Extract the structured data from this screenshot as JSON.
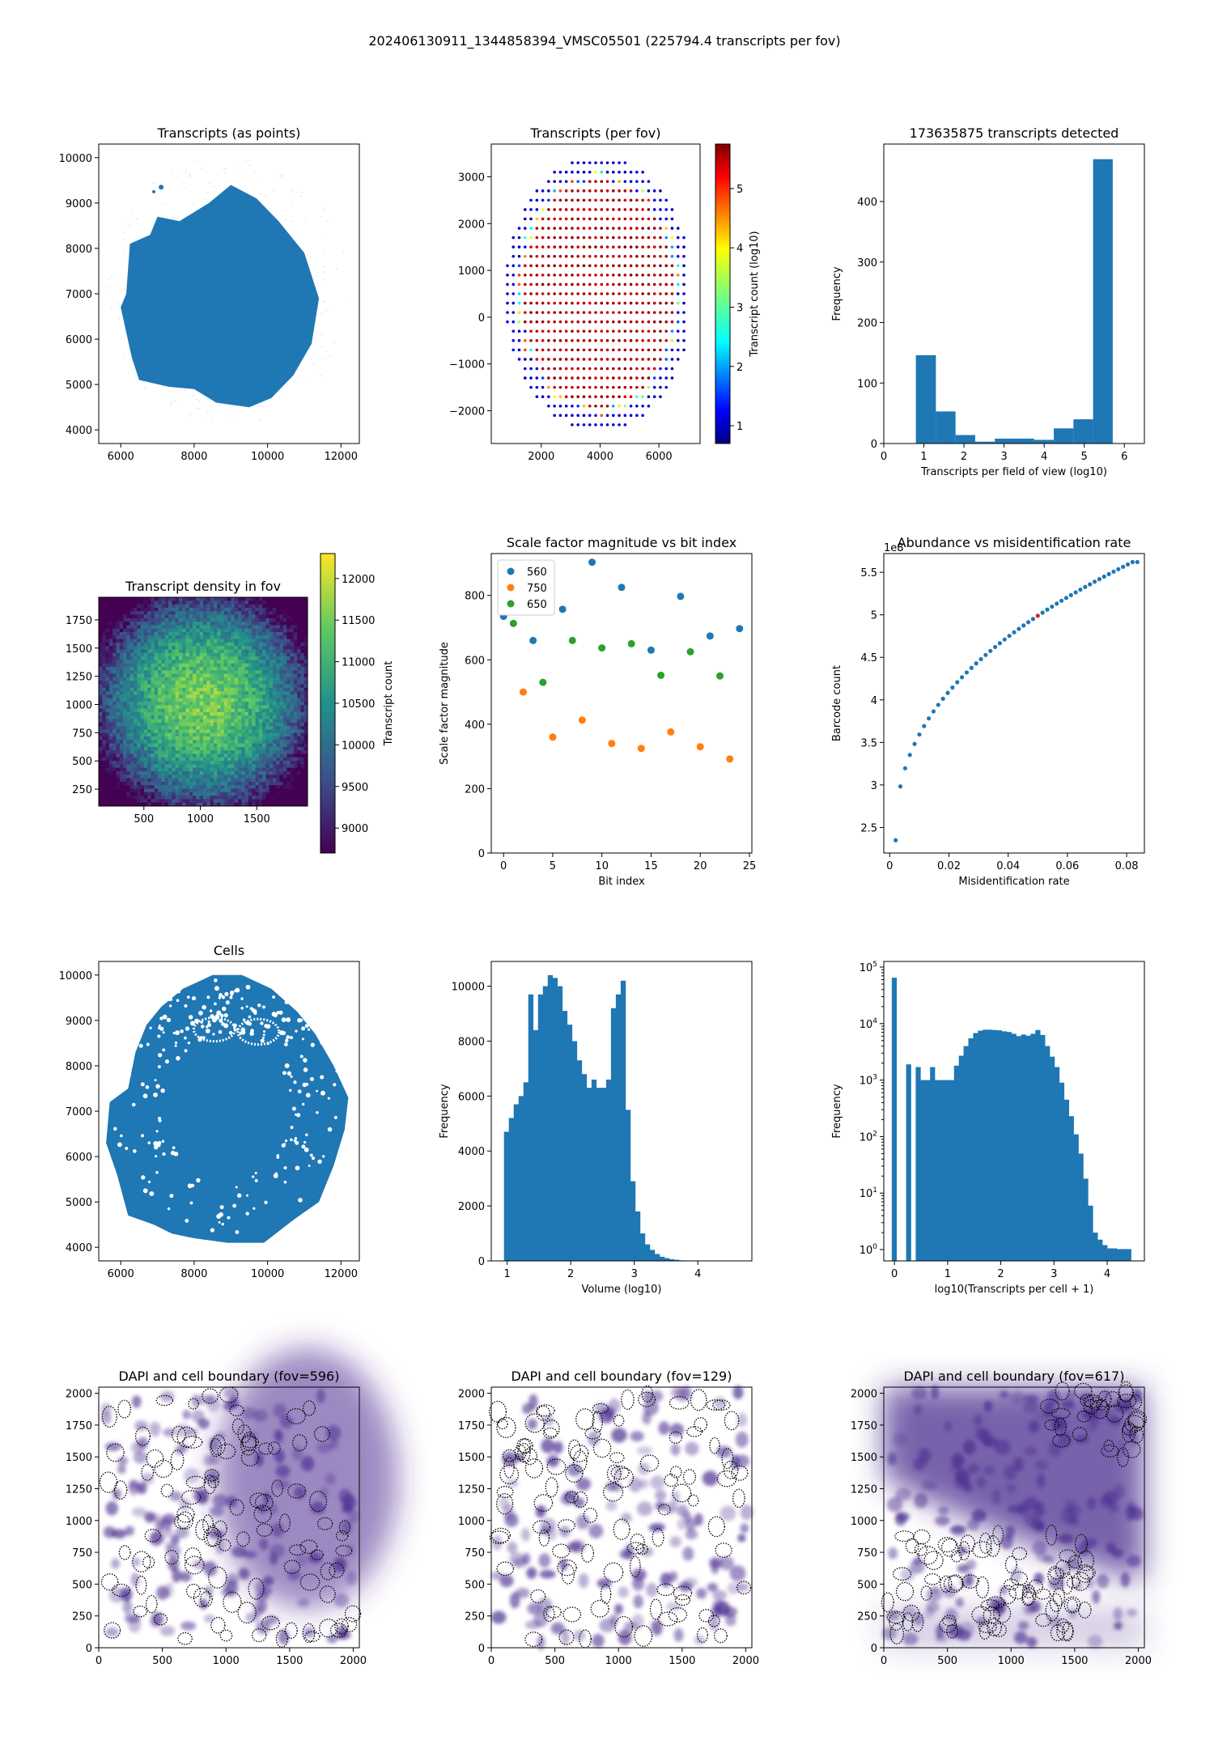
{
  "suptitle": "202406130911_1344858394_VMSC05501 (225794.4 transcripts per fov)",
  "colors": {
    "blue": "#1f77b4",
    "orange": "#ff7f0e",
    "green": "#2ca02c",
    "red": "#d62728",
    "dapi": "#4b2c8f"
  },
  "chart_data": [
    {
      "id": "transcripts-points",
      "type": "scatter",
      "title": "Transcripts (as points)",
      "xlabel": "",
      "ylabel": "",
      "xlim": [
        5400,
        12500
      ],
      "ylim": [
        3700,
        10300
      ],
      "xticks": [
        6000,
        8000,
        10000,
        12000
      ],
      "yticks": [
        4000,
        5000,
        6000,
        7000,
        8000,
        9000,
        10000
      ],
      "shape": "tissue"
    },
    {
      "id": "transcripts-per-fov",
      "type": "scatter",
      "title": "Transcripts (per fov)",
      "xlabel": "",
      "ylabel": "",
      "xlim": [
        300,
        7400
      ],
      "ylim": [
        -2700,
        3700
      ],
      "xticks": [
        2000,
        4000,
        6000
      ],
      "yticks": [
        -2000,
        -1000,
        0,
        1000,
        2000,
        3000
      ],
      "colorbar": {
        "label": "Transcript count (log10)",
        "range": [
          0.7,
          5.75
        ],
        "ticks": [
          1,
          2,
          3,
          4,
          5
        ],
        "cmap": "jet"
      }
    },
    {
      "id": "transcripts-histogram",
      "type": "bar",
      "title": "173635875 transcripts detected",
      "xlabel": "Transcripts per field of view (log10)",
      "ylabel": "Frequency",
      "xlim": [
        0,
        6.5
      ],
      "ylim": [
        0,
        495
      ],
      "xticks": [
        0,
        1,
        2,
        3,
        4,
        5,
        6
      ],
      "yticks": [
        0,
        100,
        200,
        300,
        400
      ],
      "bin_edges": [
        0.8,
        1.3,
        1.79,
        2.28,
        2.77,
        3.26,
        3.75,
        4.24,
        4.73,
        5.22,
        5.71
      ],
      "values": [
        146,
        53,
        14,
        3,
        8,
        8,
        6,
        25,
        40,
        470
      ]
    },
    {
      "id": "density-fov",
      "type": "heatmap",
      "title": "Transcript density in fov",
      "xlabel": "",
      "ylabel": "",
      "xlim": [
        100,
        1950
      ],
      "ylim": [
        100,
        1950
      ],
      "xticks": [
        500,
        1000,
        1500
      ],
      "yticks": [
        250,
        500,
        750,
        1000,
        1250,
        1500,
        1750
      ],
      "colorbar": {
        "label": "Transcript count",
        "range": [
          8700,
          12300
        ],
        "ticks": [
          9000,
          9500,
          10000,
          10500,
          11000,
          11500,
          12000
        ],
        "cmap": "viridis"
      }
    },
    {
      "id": "scale-factor",
      "type": "scatter",
      "title": "Scale factor magnitude vs bit index",
      "xlabel": "Bit index",
      "ylabel": "Scale factor magnitude",
      "xlim": [
        -1.25,
        25.25
      ],
      "ylim": [
        0,
        930
      ],
      "xticks": [
        0,
        5,
        10,
        15,
        20,
        25
      ],
      "yticks": [
        0,
        200,
        400,
        600,
        800
      ],
      "legend_position": "upper-left",
      "series": [
        {
          "name": "560",
          "color": "#1f77b4",
          "x": [
            0,
            3,
            6,
            9,
            12,
            15,
            18,
            21,
            24
          ],
          "y": [
            735,
            660,
            757,
            903,
            825,
            630,
            797,
            674,
            697
          ]
        },
        {
          "name": "750",
          "color": "#ff7f0e",
          "x": [
            2,
            5,
            8,
            11,
            14,
            17,
            20,
            23
          ],
          "y": [
            500,
            360,
            413,
            340,
            325,
            376,
            330,
            292
          ]
        },
        {
          "name": "650",
          "color": "#2ca02c",
          "x": [
            1,
            4,
            7,
            10,
            13,
            16,
            19,
            22
          ],
          "y": [
            713,
            530,
            660,
            637,
            650,
            552,
            625,
            550
          ]
        }
      ]
    },
    {
      "id": "abundance-misid",
      "type": "scatter",
      "title": "Abundance vs misidentification rate",
      "xlabel": "Misidentification rate",
      "ylabel": "Barcode count",
      "offset_label": "1e8",
      "xlim": [
        -0.002,
        0.086
      ],
      "ylim": [
        2.2,
        5.72
      ],
      "xticks": [
        0.0,
        0.02,
        0.04,
        0.06,
        0.08
      ],
      "yticks": [
        2.5,
        3.0,
        3.5,
        4.0,
        4.5,
        5.0,
        5.5
      ],
      "highlight_x": 0.05
    },
    {
      "id": "cells",
      "type": "scatter",
      "title": "Cells",
      "xlabel": "",
      "ylabel": "",
      "xlim": [
        5400,
        12500
      ],
      "ylim": [
        3700,
        10300
      ],
      "xticks": [
        6000,
        8000,
        10000,
        12000
      ],
      "yticks": [
        4000,
        5000,
        6000,
        7000,
        8000,
        9000,
        10000
      ],
      "shape": "cells"
    },
    {
      "id": "volume-histogram",
      "type": "bar",
      "title": "",
      "xlabel": "Volume (log10)",
      "ylabel": "Frequency",
      "xlim": [
        0.75,
        4.85
      ],
      "ylim": [
        0,
        10900
      ],
      "xticks": [
        1,
        2,
        3,
        4
      ],
      "yticks": [
        0,
        2000,
        4000,
        6000,
        8000,
        10000
      ],
      "bin_start": 0.95,
      "bin_width": 0.0765,
      "values": [
        4700,
        5200,
        5700,
        6000,
        6500,
        9700,
        8400,
        9700,
        10000,
        10400,
        10300,
        10000,
        9100,
        8600,
        8000,
        7300,
        6800,
        6300,
        6600,
        6300,
        6300,
        6600,
        9200,
        9700,
        10200,
        5500,
        2900,
        1800,
        1000,
        600,
        400,
        250,
        150,
        100,
        60,
        40,
        20,
        10,
        5,
        3
      ]
    },
    {
      "id": "transcripts-per-cell",
      "type": "bar",
      "title": "",
      "xlabel": "log10(Transcripts per cell + 1)",
      "ylabel": "Frequency",
      "yscale": "log",
      "xlim": [
        -0.2,
        4.7
      ],
      "ylim_log10": [
        -0.2,
        5.1
      ],
      "xticks": [
        0,
        1,
        2,
        3,
        4
      ],
      "ytick_exponents": [
        0,
        1,
        2,
        3,
        4,
        5
      ],
      "bin_start": -0.05,
      "bin_width": 0.09,
      "values": [
        65000,
        0,
        0,
        1900,
        0,
        1700,
        1000,
        1000,
        1700,
        1000,
        1000,
        1000,
        1000,
        1800,
        2700,
        4000,
        5500,
        6800,
        7500,
        7800,
        7800,
        7700,
        7600,
        7300,
        7100,
        6600,
        6000,
        6400,
        6100,
        6600,
        7700,
        6300,
        4000,
        2600,
        1700,
        900,
        450,
        230,
        110,
        50,
        18,
        6,
        2,
        1.5,
        1.2,
        1.05,
        1.05,
        1.02,
        1.02,
        1.02
      ]
    },
    {
      "id": "dapi-596",
      "type": "heatmap",
      "title": "DAPI and cell boundary (fov=596)",
      "xlim": [
        0,
        2048
      ],
      "ylim": [
        0,
        2048
      ],
      "xticks": [
        0,
        500,
        1000,
        1500,
        2000
      ],
      "yticks": [
        0,
        250,
        500,
        750,
        1000,
        1250,
        1500,
        1750,
        2000
      ]
    },
    {
      "id": "dapi-129",
      "type": "heatmap",
      "title": "DAPI and cell boundary (fov=129)",
      "xlim": [
        0,
        2048
      ],
      "ylim": [
        0,
        2048
      ],
      "xticks": [
        0,
        500,
        1000,
        1500,
        2000
      ],
      "yticks": [
        0,
        250,
        500,
        750,
        1000,
        1250,
        1500,
        1750,
        2000
      ]
    },
    {
      "id": "dapi-617",
      "type": "heatmap",
      "title": "DAPI and cell boundary (fov=617)",
      "xlim": [
        0,
        2048
      ],
      "ylim": [
        0,
        2048
      ],
      "xticks": [
        0,
        500,
        1000,
        1500,
        2000
      ],
      "yticks": [
        0,
        250,
        500,
        750,
        1000,
        1250,
        1500,
        1750,
        2000
      ]
    }
  ]
}
